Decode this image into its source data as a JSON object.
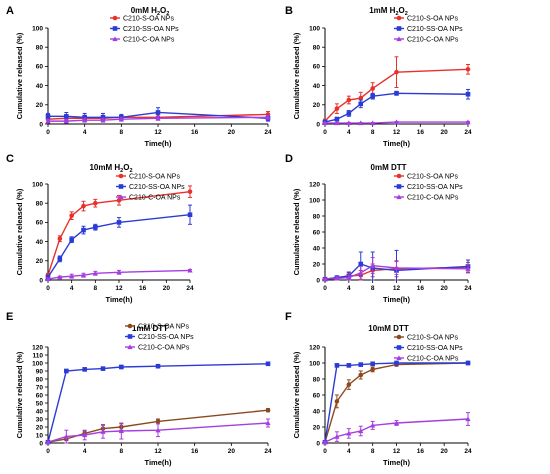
{
  "chart_data": [
    {
      "type": "line",
      "panel": "A",
      "title": [
        "0mM H",
        "2",
        "O",
        "2"
      ],
      "xlabel": "Time(h)",
      "ylabel": "Cumulative released (%)",
      "xlim": [
        0,
        24
      ],
      "ylim": [
        0,
        100
      ],
      "xticks": [
        0,
        4,
        8,
        12,
        16,
        20,
        24
      ],
      "yticks": [
        0,
        20,
        40,
        60,
        80,
        100
      ],
      "legend": "top-right",
      "x": [
        0,
        2,
        4,
        6,
        8,
        12,
        24
      ],
      "series": [
        {
          "name": "C210-S-OA  NPs",
          "color": "#e8312a",
          "marker": "circle",
          "values": [
            5,
            6,
            6,
            6,
            7,
            7,
            10
          ],
          "errors": [
            3,
            3,
            3,
            3,
            2,
            3,
            3
          ]
        },
        {
          "name": "C210-SS-OA  NPs",
          "color": "#2b3bd6",
          "marker": "square",
          "values": [
            8,
            8,
            7,
            7,
            7,
            12,
            6
          ],
          "errors": [
            3,
            4,
            4,
            4,
            3,
            5,
            3
          ]
        },
        {
          "name": "C210-C-OA  NPs",
          "color": "#a53ee0",
          "marker": "triangle",
          "values": [
            3,
            3,
            4,
            4,
            5,
            6,
            7
          ],
          "errors": [
            2,
            2,
            2,
            2,
            2,
            2,
            2
          ]
        }
      ]
    },
    {
      "type": "line",
      "panel": "B",
      "title": [
        "1mM H",
        "2",
        "O",
        "2"
      ],
      "xlabel": "Time(h)",
      "ylabel": "Cumulative released (%)",
      "xlim": [
        0,
        24
      ],
      "ylim": [
        0,
        100
      ],
      "xticks": [
        0,
        4,
        8,
        12,
        16,
        20,
        24
      ],
      "yticks": [
        0,
        20,
        40,
        60,
        80,
        100
      ],
      "legend": "top-right",
      "x": [
        0,
        2,
        4,
        6,
        8,
        12,
        24
      ],
      "series": [
        {
          "name": "C210-S-OA  NPs",
          "color": "#e8312a",
          "marker": "circle",
          "values": [
            3,
            16,
            25,
            27,
            37,
            54,
            57
          ],
          "errors": [
            2,
            5,
            4,
            6,
            6,
            16,
            5
          ]
        },
        {
          "name": "C210-SS-OA  NPs",
          "color": "#2b3bd6",
          "marker": "square",
          "values": [
            2,
            5,
            11,
            21,
            29,
            32,
            31
          ],
          "errors": [
            1,
            2,
            3,
            4,
            3,
            2,
            5
          ]
        },
        {
          "name": "C210-C-OA  NPs",
          "color": "#a53ee0",
          "marker": "triangle",
          "values": [
            1,
            1,
            1,
            1,
            1,
            2,
            2
          ],
          "errors": [
            0.5,
            0.5,
            0.5,
            0.5,
            0.5,
            0.5,
            0.5
          ]
        }
      ]
    },
    {
      "type": "line",
      "panel": "C",
      "title": [
        "10mM H",
        "2",
        "O",
        "2"
      ],
      "xlabel": "Time(h)",
      "ylabel": "Cumulative released (%)",
      "xlim": [
        0,
        24
      ],
      "ylim": [
        0,
        100
      ],
      "xticks": [
        0,
        4,
        8,
        12,
        16,
        20,
        24
      ],
      "yticks": [
        0,
        20,
        40,
        60,
        80,
        100
      ],
      "legend": "top-right",
      "x": [
        0,
        2,
        4,
        6,
        8,
        12,
        24
      ],
      "series": [
        {
          "name": "C210-S-OA  NPs",
          "color": "#e8312a",
          "marker": "circle",
          "values": [
            5,
            43,
            67,
            77,
            80,
            83,
            92
          ],
          "errors": [
            2,
            3,
            4,
            5,
            4,
            5,
            6
          ]
        },
        {
          "name": "C210-SS-OA  NPs",
          "color": "#2b3bd6",
          "marker": "square",
          "values": [
            3,
            22,
            42,
            52,
            55,
            60,
            68
          ],
          "errors": [
            2,
            3,
            3,
            4,
            3,
            5,
            10
          ]
        },
        {
          "name": "C210-C-OA NPs",
          "color": "#a53ee0",
          "marker": "triangle",
          "values": [
            1,
            3,
            4,
            5,
            7,
            8,
            10
          ],
          "errors": [
            1,
            1,
            2,
            2,
            2,
            2,
            1
          ]
        }
      ]
    },
    {
      "type": "line",
      "panel": "D",
      "title": [
        "0mM DTT"
      ],
      "xlabel": "Time(h)",
      "ylabel": "Cumulative released (%)",
      "xlim": [
        0,
        24
      ],
      "ylim": [
        0,
        120
      ],
      "xticks": [
        0,
        4,
        8,
        12,
        16,
        20,
        24
      ],
      "yticks": [
        0,
        20,
        40,
        60,
        80,
        100,
        120
      ],
      "legend": "top-right",
      "x": [
        0,
        2,
        4,
        6,
        8,
        12,
        24
      ],
      "series": [
        {
          "name": "C210-S-OA NPs",
          "color": "#e8312a",
          "marker": "circle",
          "values": [
            1,
            3,
            5,
            6,
            12,
            14,
            16
          ],
          "errors": [
            1,
            2,
            4,
            6,
            8,
            10,
            6
          ]
        },
        {
          "name": "C210-SS-OA NPs",
          "color": "#2b3bd6",
          "marker": "square",
          "values": [
            1,
            3,
            5,
            20,
            15,
            12,
            17
          ],
          "errors": [
            1,
            2,
            5,
            15,
            20,
            25,
            8
          ]
        },
        {
          "name": "C210-C-OA NPs",
          "color": "#a53ee0",
          "marker": "triangle",
          "values": [
            1,
            2,
            3,
            9,
            18,
            15,
            14
          ],
          "errors": [
            1,
            2,
            3,
            8,
            10,
            8,
            5
          ]
        }
      ]
    },
    {
      "type": "line",
      "panel": "E",
      "title": [
        "1mM DTT"
      ],
      "xlabel": "Time(h)",
      "ylabel": "Cumulative released (%)",
      "xlim": [
        0,
        24
      ],
      "ylim": [
        0,
        120
      ],
      "xticks": [
        0,
        4,
        8,
        12,
        16,
        20,
        24
      ],
      "yticks": [
        0,
        10,
        20,
        30,
        40,
        50,
        60,
        70,
        80,
        90,
        100,
        110,
        120
      ],
      "legend": "top-right",
      "x": [
        0,
        2,
        4,
        6,
        8,
        12,
        24
      ],
      "series": [
        {
          "name": "C210-S-OA NPs",
          "color": "#8b4a1e",
          "marker": "circle",
          "values": [
            1,
            5,
            12,
            18,
            20,
            27,
            41
          ],
          "errors": [
            1,
            2,
            3,
            5,
            4,
            3,
            2
          ]
        },
        {
          "name": "C210-SS-OA NPs",
          "color": "#2b3bd6",
          "marker": "square",
          "values": [
            1,
            90,
            92,
            93,
            95,
            96,
            99
          ],
          "errors": [
            1,
            2,
            2,
            2,
            2,
            2,
            2
          ]
        },
        {
          "name": "C210-C-OA NPs",
          "color": "#a53ee0",
          "marker": "triangle",
          "values": [
            1,
            8,
            10,
            14,
            15,
            16,
            25
          ],
          "errors": [
            1,
            8,
            6,
            8,
            10,
            8,
            5
          ]
        }
      ]
    },
    {
      "type": "line",
      "panel": "F",
      "title": [
        "10mM DTT"
      ],
      "xlabel": "Time(h)",
      "ylabel": "Cumulative released (%)",
      "xlim": [
        0,
        24
      ],
      "ylim": [
        0,
        120
      ],
      "xticks": [
        0,
        4,
        8,
        12,
        16,
        20,
        24
      ],
      "yticks": [
        0,
        20,
        40,
        60,
        80,
        100,
        120
      ],
      "legend": "top-right",
      "x": [
        0,
        2,
        4,
        6,
        8,
        12,
        24
      ],
      "series": [
        {
          "name": "C210-S-OA NPs",
          "color": "#8b4a1e",
          "marker": "circle",
          "values": [
            1,
            52,
            73,
            85,
            92,
            98,
            100
          ],
          "errors": [
            1,
            8,
            6,
            5,
            3,
            2,
            2
          ]
        },
        {
          "name": "C210-SS-OA NPs",
          "color": "#2b3bd6",
          "marker": "square",
          "values": [
            1,
            97,
            97,
            98,
            99,
            100,
            100
          ],
          "errors": [
            1,
            2,
            2,
            2,
            2,
            2,
            2
          ]
        },
        {
          "name": "C210-C-OA NPs",
          "color": "#a53ee0",
          "marker": "triangle",
          "values": [
            1,
            8,
            12,
            15,
            22,
            25,
            30
          ],
          "errors": [
            1,
            6,
            6,
            6,
            5,
            3,
            8
          ]
        }
      ]
    }
  ]
}
